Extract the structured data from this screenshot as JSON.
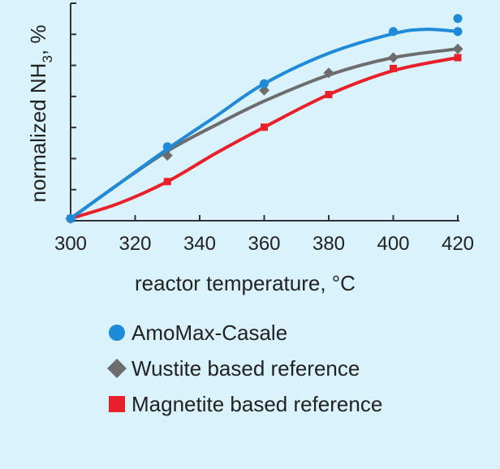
{
  "chart_data": {
    "type": "line",
    "title": "",
    "xlabel": "reactor temperature, °C",
    "ylabel_main": "normalized NH",
    "ylabel_sub": "3",
    "ylabel_tail": ", %",
    "x_ticks": [
      "300",
      "320",
      "340",
      "360",
      "380",
      "400",
      "420"
    ],
    "xlim": [
      300,
      420
    ],
    "ylim": [
      0,
      1
    ],
    "y_tick_count": 7,
    "grid": false,
    "legend_position": "bottom-left",
    "series": [
      {
        "name": "AmoMax-Casale",
        "marker": "circle",
        "color": "#1f8ad8",
        "points": [
          [
            300,
            0.01
          ],
          [
            330,
            0.34
          ],
          [
            360,
            0.63
          ],
          [
            400,
            0.87
          ],
          [
            420,
            0.93
          ],
          [
            420,
            0.87
          ]
        ],
        "curve": [
          [
            300,
            0.01
          ],
          [
            315,
            0.17
          ],
          [
            330,
            0.33
          ],
          [
            345,
            0.48
          ],
          [
            360,
            0.63
          ],
          [
            380,
            0.77
          ],
          [
            400,
            0.86
          ],
          [
            410,
            0.88
          ],
          [
            420,
            0.87
          ]
        ]
      },
      {
        "name": "Wustite based reference",
        "marker": "diamond",
        "color": "#6d6d6d",
        "points": [
          [
            300,
            0.01
          ],
          [
            330,
            0.3
          ],
          [
            360,
            0.6
          ],
          [
            380,
            0.68
          ],
          [
            400,
            0.75
          ],
          [
            420,
            0.79
          ]
        ],
        "curve": [
          [
            300,
            0.01
          ],
          [
            315,
            0.17
          ],
          [
            330,
            0.32
          ],
          [
            345,
            0.44
          ],
          [
            360,
            0.55
          ],
          [
            380,
            0.67
          ],
          [
            400,
            0.75
          ],
          [
            420,
            0.79
          ]
        ]
      },
      {
        "name": "Magnetite based reference",
        "marker": "square",
        "color": "#e8202a",
        "points": [
          [
            300,
            0.01
          ],
          [
            330,
            0.18
          ],
          [
            360,
            0.43
          ],
          [
            380,
            0.58
          ],
          [
            400,
            0.7
          ],
          [
            420,
            0.75
          ]
        ],
        "curve": [
          [
            300,
            0.01
          ],
          [
            315,
            0.08
          ],
          [
            330,
            0.18
          ],
          [
            345,
            0.31
          ],
          [
            360,
            0.43
          ],
          [
            380,
            0.58
          ],
          [
            400,
            0.69
          ],
          [
            420,
            0.75
          ]
        ]
      }
    ]
  }
}
